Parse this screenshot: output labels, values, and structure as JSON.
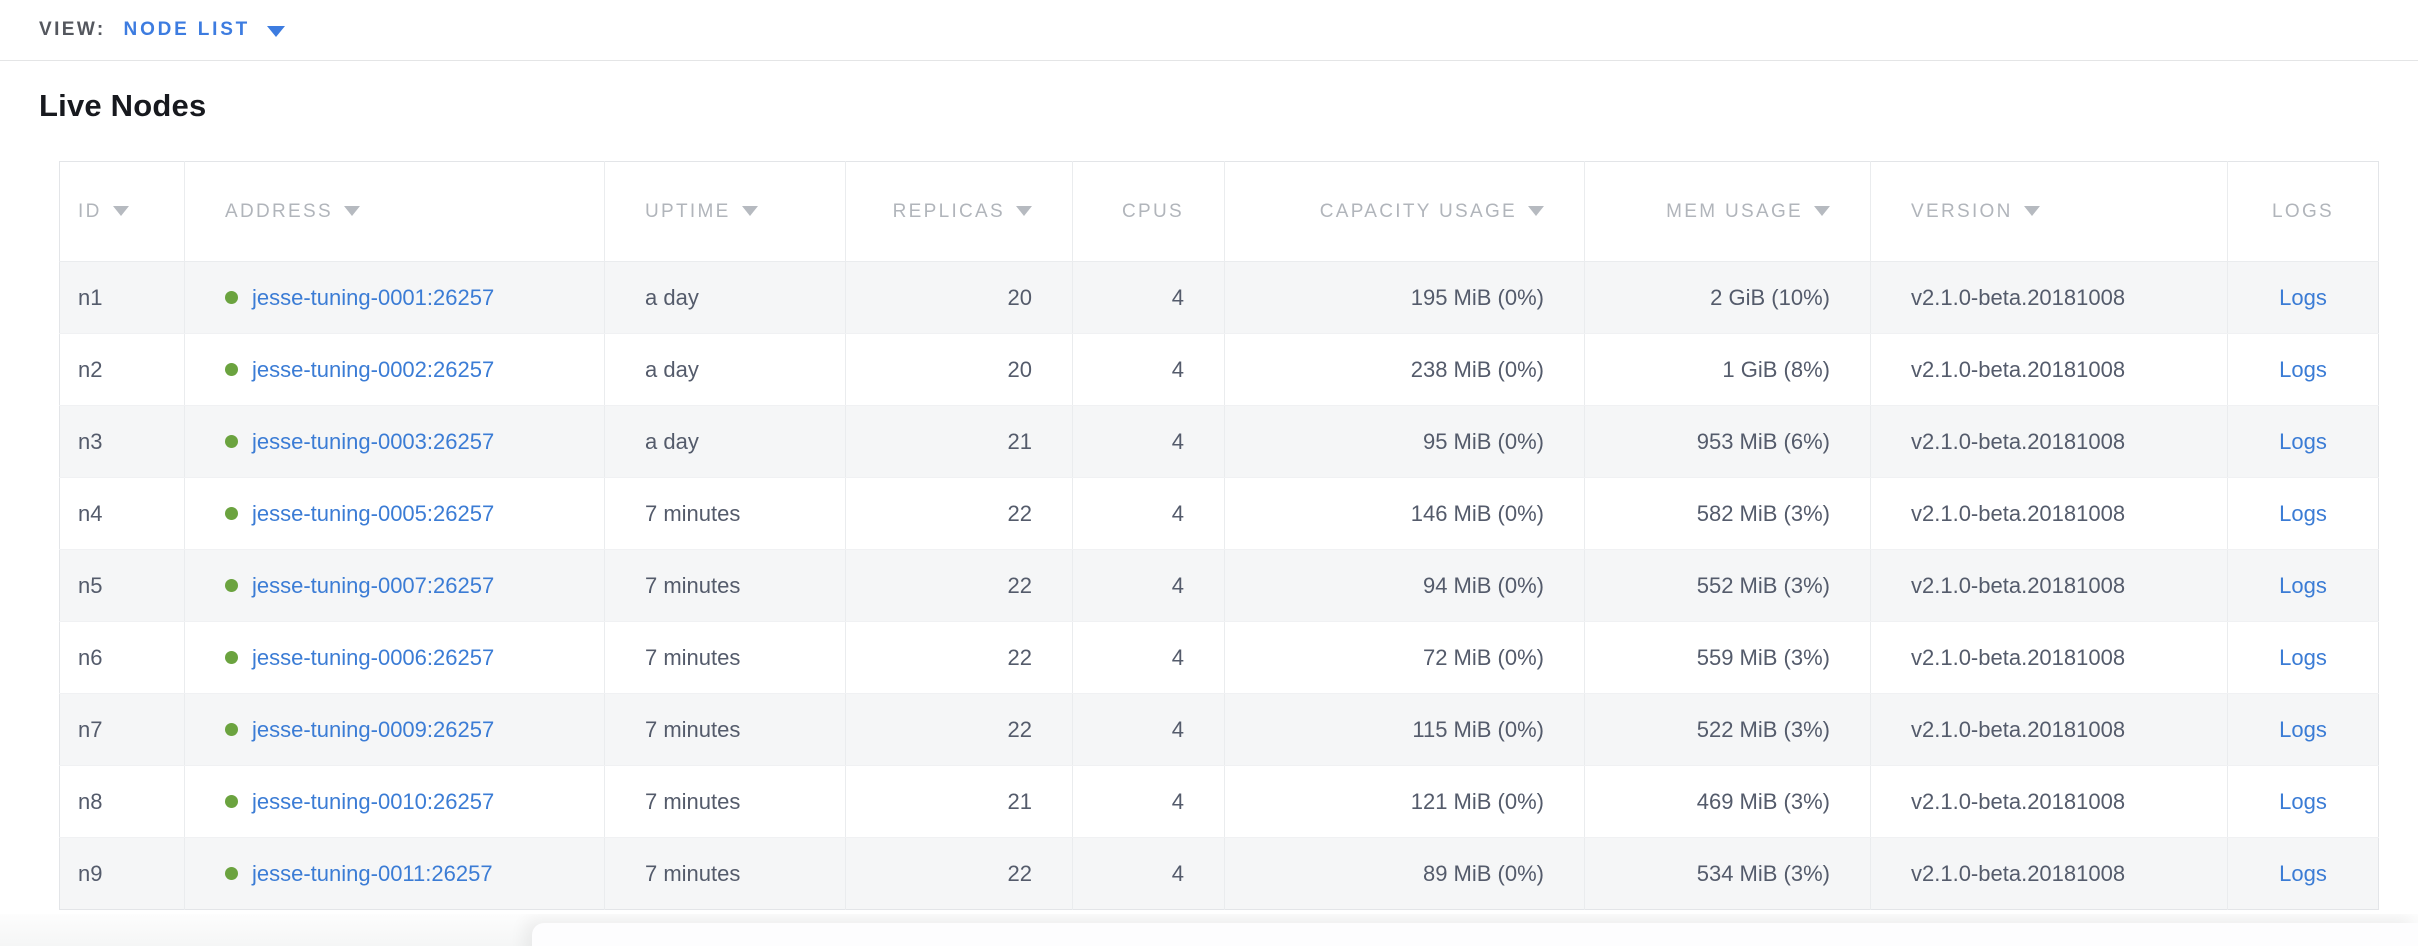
{
  "view_bar": {
    "label": "VIEW:",
    "selected": "NODE LIST"
  },
  "page": {
    "title": "Live Nodes"
  },
  "table": {
    "columns": [
      {
        "key": "id",
        "label": "ID",
        "sortable": true,
        "align": "left"
      },
      {
        "key": "address",
        "label": "ADDRESS",
        "sortable": true,
        "align": "left"
      },
      {
        "key": "uptime",
        "label": "UPTIME",
        "sortable": true,
        "align": "left"
      },
      {
        "key": "replicas",
        "label": "REPLICAS",
        "sortable": true,
        "align": "right"
      },
      {
        "key": "cpus",
        "label": "CPUS",
        "sortable": false,
        "align": "right"
      },
      {
        "key": "capacity",
        "label": "CAPACITY USAGE",
        "sortable": true,
        "align": "right"
      },
      {
        "key": "mem",
        "label": "MEM USAGE",
        "sortable": true,
        "align": "right"
      },
      {
        "key": "version",
        "label": "VERSION",
        "sortable": true,
        "align": "left"
      },
      {
        "key": "logs",
        "label": "LOGS",
        "sortable": false,
        "align": "center"
      }
    ],
    "rows": [
      {
        "id": "n1",
        "address": "jesse-tuning-0001:26257",
        "status": "live",
        "uptime": "a day",
        "replicas": "20",
        "cpus": "4",
        "capacity": "195 MiB (0%)",
        "mem": "2 GiB (10%)",
        "version": "v2.1.0-beta.20181008",
        "logs": "Logs"
      },
      {
        "id": "n2",
        "address": "jesse-tuning-0002:26257",
        "status": "live",
        "uptime": "a day",
        "replicas": "20",
        "cpus": "4",
        "capacity": "238 MiB (0%)",
        "mem": "1 GiB (8%)",
        "version": "v2.1.0-beta.20181008",
        "logs": "Logs"
      },
      {
        "id": "n3",
        "address": "jesse-tuning-0003:26257",
        "status": "live",
        "uptime": "a day",
        "replicas": "21",
        "cpus": "4",
        "capacity": "95 MiB (0%)",
        "mem": "953 MiB (6%)",
        "version": "v2.1.0-beta.20181008",
        "logs": "Logs"
      },
      {
        "id": "n4",
        "address": "jesse-tuning-0005:26257",
        "status": "live",
        "uptime": "7 minutes",
        "replicas": "22",
        "cpus": "4",
        "capacity": "146 MiB (0%)",
        "mem": "582 MiB (3%)",
        "version": "v2.1.0-beta.20181008",
        "logs": "Logs"
      },
      {
        "id": "n5",
        "address": "jesse-tuning-0007:26257",
        "status": "live",
        "uptime": "7 minutes",
        "replicas": "22",
        "cpus": "4",
        "capacity": "94 MiB (0%)",
        "mem": "552 MiB (3%)",
        "version": "v2.1.0-beta.20181008",
        "logs": "Logs"
      },
      {
        "id": "n6",
        "address": "jesse-tuning-0006:26257",
        "status": "live",
        "uptime": "7 minutes",
        "replicas": "22",
        "cpus": "4",
        "capacity": "72 MiB (0%)",
        "mem": "559 MiB (3%)",
        "version": "v2.1.0-beta.20181008",
        "logs": "Logs"
      },
      {
        "id": "n7",
        "address": "jesse-tuning-0009:26257",
        "status": "live",
        "uptime": "7 minutes",
        "replicas": "22",
        "cpus": "4",
        "capacity": "115 MiB (0%)",
        "mem": "522 MiB (3%)",
        "version": "v2.1.0-beta.20181008",
        "logs": "Logs"
      },
      {
        "id": "n8",
        "address": "jesse-tuning-0010:26257",
        "status": "live",
        "uptime": "7 minutes",
        "replicas": "21",
        "cpus": "4",
        "capacity": "121 MiB (0%)",
        "mem": "469 MiB (3%)",
        "version": "v2.1.0-beta.20181008",
        "logs": "Logs"
      },
      {
        "id": "n9",
        "address": "jesse-tuning-0011:26257",
        "status": "live",
        "uptime": "7 minutes",
        "replicas": "22",
        "cpus": "4",
        "capacity": "89 MiB (0%)",
        "mem": "534 MiB (3%)",
        "version": "v2.1.0-beta.20181008",
        "logs": "Logs"
      }
    ]
  },
  "colors": {
    "link_blue": "#3b7cd5",
    "accent_blue": "#3d7ce0",
    "node_live_green": "#6ba33f",
    "header_label_gray": "#b1b5bb",
    "row_stripe": "#f5f6f7"
  },
  "icons": {
    "view_caret": "caret-down-icon",
    "sort_caret": "sort-desc-icon",
    "node_status": "status-dot-icon"
  }
}
